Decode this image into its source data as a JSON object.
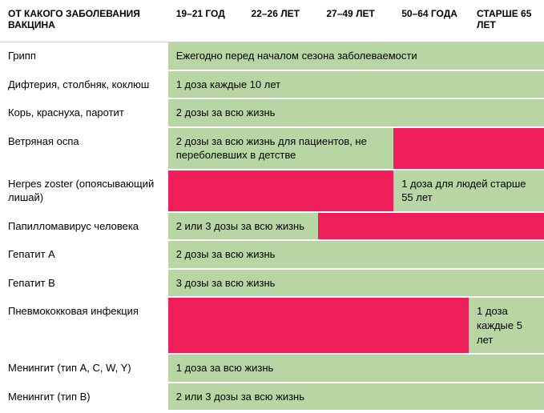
{
  "colors": {
    "green": "#b8d6a3",
    "pink": "#ed1e5a",
    "white": "#ffffff",
    "border": "#cccccc"
  },
  "header": {
    "vaccine": "ОТ КАКОГО ЗАБОЛЕВАНИЯ ВАКЦИНА",
    "ages": [
      "19–21 ГОД",
      "22–26 ЛЕТ",
      "27–49 ЛЕТ",
      "50–64 ГОДА",
      "СТАРШЕ 65 ЛЕТ"
    ]
  },
  "rows": {
    "flu": {
      "name": "Грипп",
      "note": "Ежегодно перед началом сезона заболеваемости"
    },
    "dtp": {
      "name": "Дифтерия, столбняк, коклюш",
      "note": "1 доза каждые 10 лет"
    },
    "mmr": {
      "name": "Корь, краснуха, паротит",
      "note": "2 дозы за всю жизнь"
    },
    "varicella": {
      "name": "Ветряная оспа",
      "note": "2 дозы за всю жизнь для пациентов, не переболевших в детстве"
    },
    "herpes": {
      "name": "Herpes zoster (опоясывающий лишай)",
      "note": "1 доза для людей старше 55 лет"
    },
    "hpv": {
      "name": "Папилломавирус человека",
      "note": "2 или 3 дозы за всю жизнь"
    },
    "hepa": {
      "name": "Гепатит А",
      "note": "2 дозы за всю жизнь"
    },
    "hepb": {
      "name": "Гепатит В",
      "note": "3 дозы за всю жизнь"
    },
    "pneum": {
      "name": "Пневмококковая инфекция",
      "note": "1 доза каждые 5 лет"
    },
    "mening_acwy": {
      "name": "Менингит (тип A, C, W, Y)",
      "note": "1 доза за всю жизнь"
    },
    "mening_b": {
      "name": "Менингит (тип В)",
      "note": "2 или 3 дозы за всю жизнь"
    }
  }
}
